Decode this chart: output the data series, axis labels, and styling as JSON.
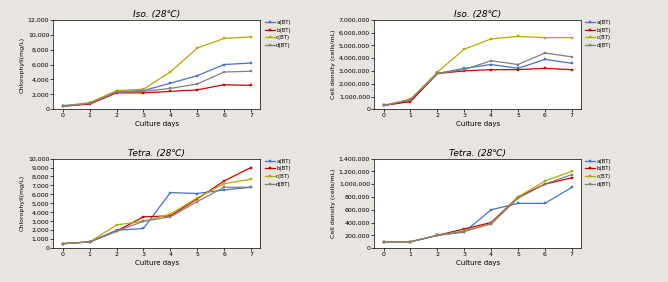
{
  "days": [
    0,
    1,
    2,
    3,
    4,
    5,
    6,
    7
  ],
  "iso_chl": {
    "a": [
      500,
      800,
      2400,
      2500,
      3500,
      4500,
      6000,
      6200
    ],
    "b": [
      400,
      700,
      2200,
      2200,
      2400,
      2600,
      3300,
      3200
    ],
    "c": [
      400,
      900,
      2500,
      2700,
      5000,
      8200,
      9500,
      9700
    ],
    "d": [
      400,
      800,
      2300,
      2400,
      2800,
      3400,
      5000,
      5100
    ]
  },
  "iso_cell": {
    "a": [
      300000,
      700000,
      2800000,
      3200000,
      3500000,
      3200000,
      3900000,
      3600000
    ],
    "b": [
      300000,
      600000,
      2800000,
      3000000,
      3100000,
      3100000,
      3200000,
      3100000
    ],
    "c": [
      300000,
      800000,
      2900000,
      4700000,
      5500000,
      5700000,
      5600000,
      5600000
    ],
    "d": [
      300000,
      750000,
      2800000,
      3100000,
      3800000,
      3500000,
      4400000,
      4100000
    ]
  },
  "tetra_chl": {
    "a": [
      500,
      700,
      2000,
      2200,
      6200,
      6100,
      6500,
      6800
    ],
    "b": [
      500,
      700,
      1900,
      3500,
      3600,
      5500,
      7500,
      9000
    ],
    "c": [
      500,
      700,
      2600,
      3000,
      3800,
      5600,
      7200,
      7700
    ],
    "d": [
      500,
      700,
      1900,
      3000,
      3500,
      5200,
      6800,
      6800
    ]
  },
  "tetra_cell": {
    "a": [
      100000,
      100000,
      200000,
      250000,
      600000,
      700000,
      700000,
      950000
    ],
    "b": [
      100000,
      100000,
      200000,
      300000,
      400000,
      800000,
      1000000,
      1100000
    ],
    "c": [
      100000,
      100000,
      200000,
      270000,
      380000,
      800000,
      1050000,
      1200000
    ],
    "d": [
      100000,
      100000,
      200000,
      260000,
      380000,
      780000,
      1000000,
      1150000
    ]
  },
  "colors": {
    "a": "#4472c4",
    "b": "#cc0000",
    "c": "#b8a800",
    "d": "#808080"
  },
  "legend_labels": {
    "a": "a(BT)",
    "b": "b(BT)",
    "c": "c(BT)",
    "d": "d(BT)"
  },
  "bg_color": "#ffffff",
  "fig_bg": "#e8e4e0"
}
